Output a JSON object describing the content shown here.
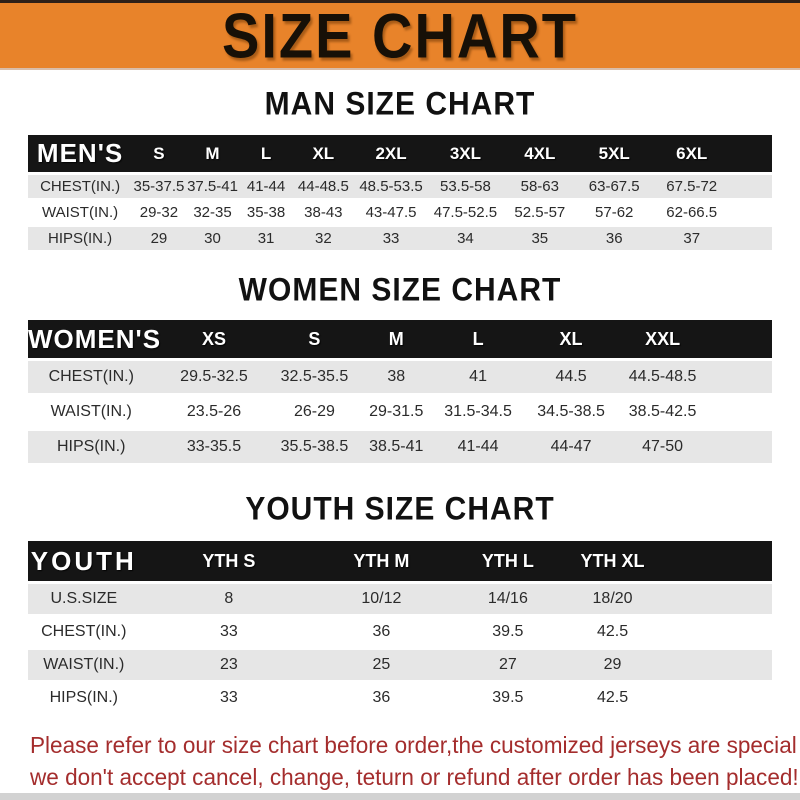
{
  "banner": {
    "title": "SIZE CHART",
    "bg_color": "#E8832A",
    "text_color": "#171007"
  },
  "colors": {
    "table_header_bg": "#151515",
    "row_stripe": "#E6E6E6",
    "note_red": "#A42D2D"
  },
  "sections": [
    {
      "title": "MAN SIZE CHART",
      "table": {
        "header": [
          "MEN'S",
          "S",
          "M",
          "L",
          "XL",
          "2XL",
          "3XL",
          "4XL",
          "5XL",
          "6XL"
        ],
        "rows": [
          [
            "CHEST(IN.)",
            "35-37.5",
            "37.5-41",
            "41-44",
            "44-48.5",
            "48.5-53.5",
            "53.5-58",
            "58-63",
            "63-67.5",
            "67.5-72"
          ],
          [
            "WAIST(IN.)",
            "29-32",
            "32-35",
            "35-38",
            "38-43",
            "43-47.5",
            "47.5-52.5",
            "52.5-57",
            "57-62",
            "62-66.5"
          ],
          [
            "HIPS(IN.)",
            "29",
            "30",
            "31",
            "32",
            "33",
            "34",
            "35",
            "36",
            "37"
          ]
        ]
      }
    },
    {
      "title": "WOMEN SIZE CHART",
      "table": {
        "header": [
          "WOMEN'S",
          "XS",
          "S",
          "M",
          "L",
          "XL",
          "XXL"
        ],
        "rows": [
          [
            "CHEST(IN.)",
            "29.5-32.5",
            "32.5-35.5",
            "38",
            "41",
            "44.5",
            "44.5-48.5"
          ],
          [
            "WAIST(IN.)",
            "23.5-26",
            "26-29",
            "29-31.5",
            "31.5-34.5",
            "34.5-38.5",
            "38.5-42.5"
          ],
          [
            "HIPS(IN.)",
            "33-35.5",
            "35.5-38.5",
            "38.5-41",
            "41-44",
            "44-47",
            "47-50"
          ]
        ]
      }
    },
    {
      "title": "YOUTH SIZE CHART",
      "table": {
        "header": [
          "YOUTH",
          "YTH S",
          "YTH M",
          "YTH L",
          "YTH XL"
        ],
        "rows": [
          [
            "U.S.SIZE",
            "8",
            "10/12",
            "14/16",
            "18/20"
          ],
          [
            "CHEST(IN.)",
            "33",
            "36",
            "39.5",
            "42.5"
          ],
          [
            "WAIST(IN.)",
            "23",
            "25",
            "27",
            "29"
          ],
          [
            "HIPS(IN.)",
            "33",
            "36",
            "39.5",
            "42.5"
          ]
        ]
      }
    }
  ],
  "footer": {
    "line1": "Please refer to our size chart before order,the customized jerseys are special products,",
    "line2": "we don't accept cancel, change, teturn or refund after order has been placed!"
  }
}
